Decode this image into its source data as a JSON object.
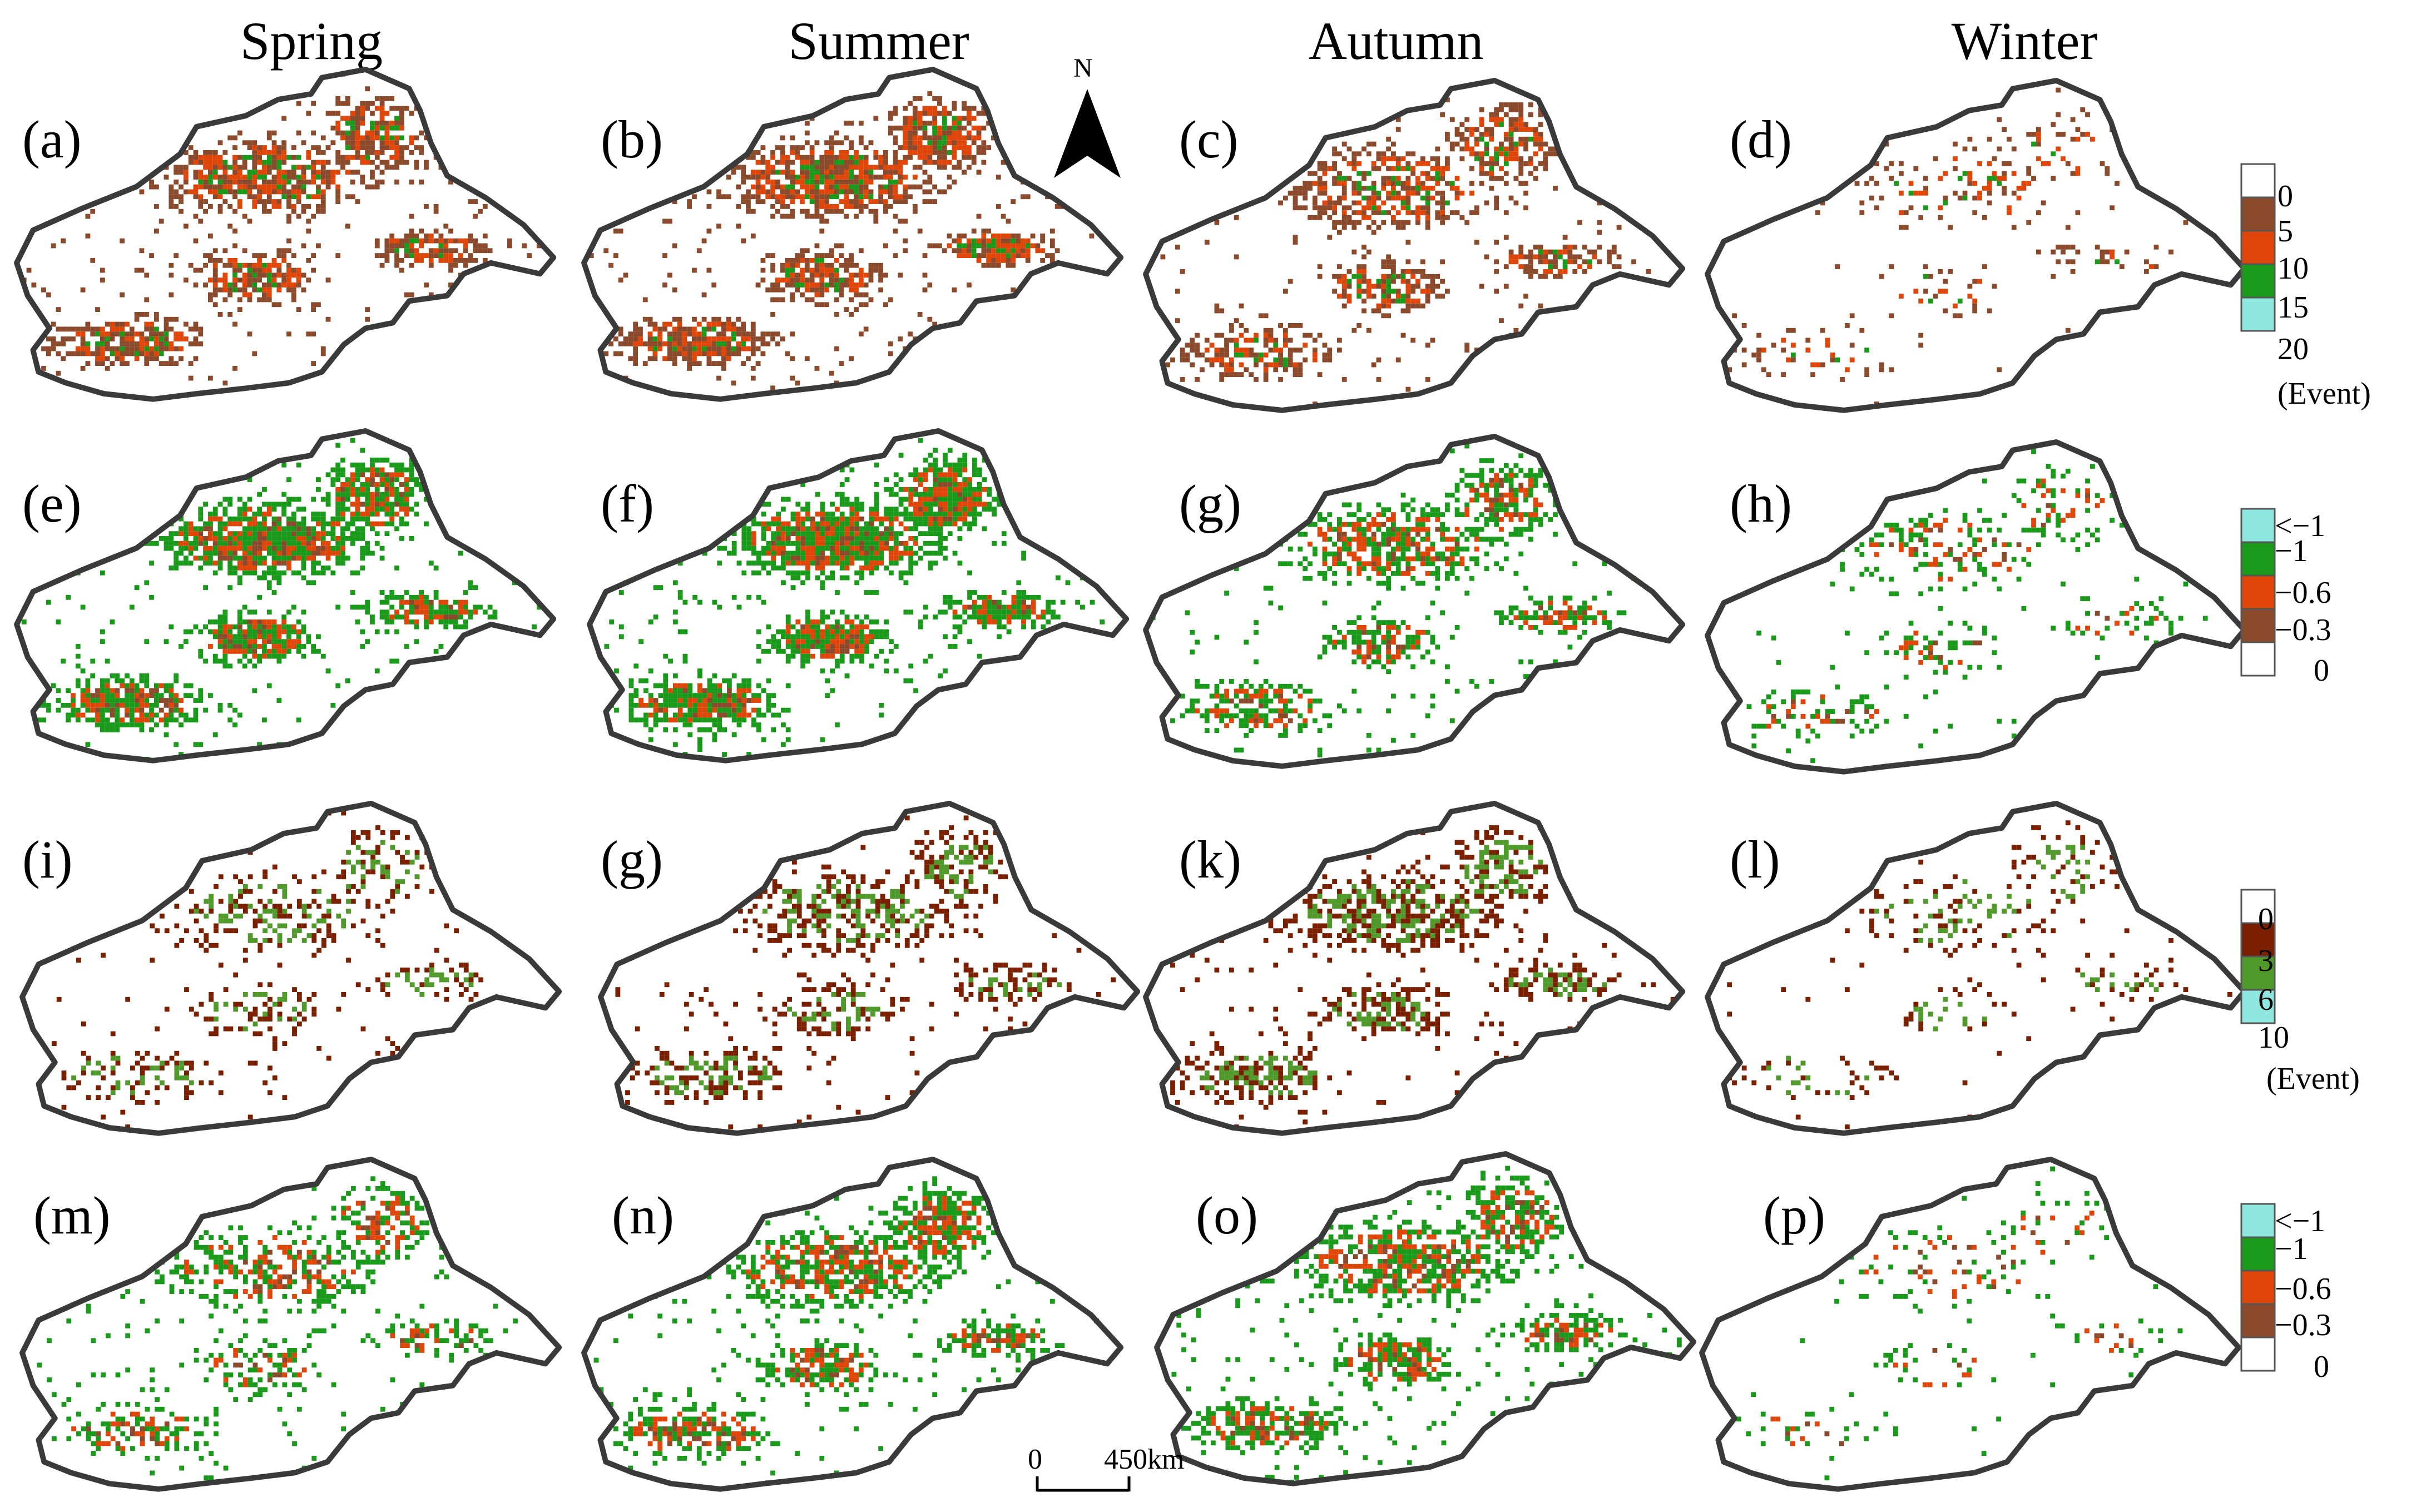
{
  "seasons": [
    "Spring",
    "Summer",
    "Autumn",
    "Winter"
  ],
  "panel_labels": [
    "(a)",
    "(b)",
    "(c)",
    "(d)",
    "(e)",
    "(f)",
    "(g)",
    "(h)",
    "(i)",
    "(g)",
    "(k)",
    "(l)",
    "(m)",
    "(n)",
    "(o)",
    "(p)"
  ],
  "north_label": "N",
  "scale_bar": {
    "left_label": "0",
    "right_label": "450km"
  },
  "legends": [
    {
      "values": [
        "0",
        "5",
        "10",
        "15",
        "20"
      ],
      "unit": "(Event)",
      "swatches": [
        "#ffffff",
        "#8b4a2b",
        "#e0460a",
        "#1a9a1a",
        "#8fe8e0"
      ]
    },
    {
      "values": [
        "<−1",
        "−1",
        "−0.6",
        "−0.3",
        "0"
      ],
      "unit": "",
      "swatches": [
        "#8fe8e0",
        "#1a9a1a",
        "#e0460a",
        "#8b4a2b",
        "#ffffff"
      ]
    },
    {
      "values": [
        "0",
        "3",
        "6",
        "10"
      ],
      "unit": "(Event)",
      "swatches": [
        "#ffffff",
        "#7a2000",
        "#4f9a2a",
        "#8fe8e0"
      ]
    },
    {
      "values": [
        "<−1",
        "−1",
        "−0.6",
        "−0.3",
        "0"
      ],
      "unit": "",
      "swatches": [
        "#8fe8e0",
        "#1a9a1a",
        "#e0460a",
        "#8b4a2b",
        "#ffffff"
      ]
    }
  ],
  "palettes": {
    "row1": [
      "#8b4a2b",
      "#e0460a",
      "#1a9a1a"
    ],
    "row2": [
      "#1a9a1a",
      "#e0460a",
      "#8b4a2b"
    ],
    "row3": [
      "#7a2000",
      "#4f9a2a"
    ],
    "row4": [
      "#1a9a1a",
      "#e0460a",
      "#8b4a2b"
    ]
  },
  "boundary_color": "#3a3a3a"
}
